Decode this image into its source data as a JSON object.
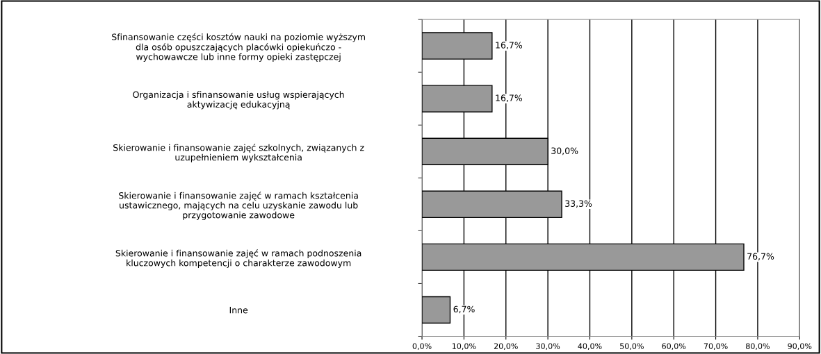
{
  "chart_data": {
    "type": "bar",
    "orientation": "horizontal",
    "categories": [
      "Sfinansowanie części kosztów nauki na poziomie wyższym\ndla osób opuszczających placówki opiekuńczo -\nwychowawcze lub inne formy opieki zastępczej",
      "Organizacja i sfinansowanie usług wspierających\naktywizację edukacyjną",
      "Skierowanie i finansowanie zajęć szkolnych, związanych z\nuzupełnieniem wykształcenia",
      "Skierowanie i finansowanie zajęć w ramach kształcenia\nustawicznego, mających na celu uzyskanie zawodu lub\nprzygotowanie zawodowe",
      "Skierowanie i finansowanie zajęć w ramach podnoszenia\nkluczowych kompetencji o charakterze zawodowym",
      "Inne"
    ],
    "values": [
      16.7,
      16.7,
      30.0,
      33.3,
      76.7,
      6.7
    ],
    "value_labels": [
      "16,7%",
      "16,7%",
      "30,0%",
      "33,3%",
      "76,7%",
      "6,7%"
    ],
    "color": "#999999",
    "xlim": [
      0,
      90
    ],
    "xticks": [
      {
        "value": 0,
        "label": "0,0%"
      },
      {
        "value": 10,
        "label": "10,0%"
      },
      {
        "value": 20,
        "label": "20,0%"
      },
      {
        "value": 30,
        "label": "30,0%"
      },
      {
        "value": 40,
        "label": "40,0%"
      },
      {
        "value": 50,
        "label": "50,0%"
      },
      {
        "value": 60,
        "label": "60,0%"
      },
      {
        "value": 70,
        "label": "70,0%"
      },
      {
        "value": 80,
        "label": "80,0%"
      },
      {
        "value": 90,
        "label": "90,0%"
      }
    ],
    "grid": "x"
  }
}
